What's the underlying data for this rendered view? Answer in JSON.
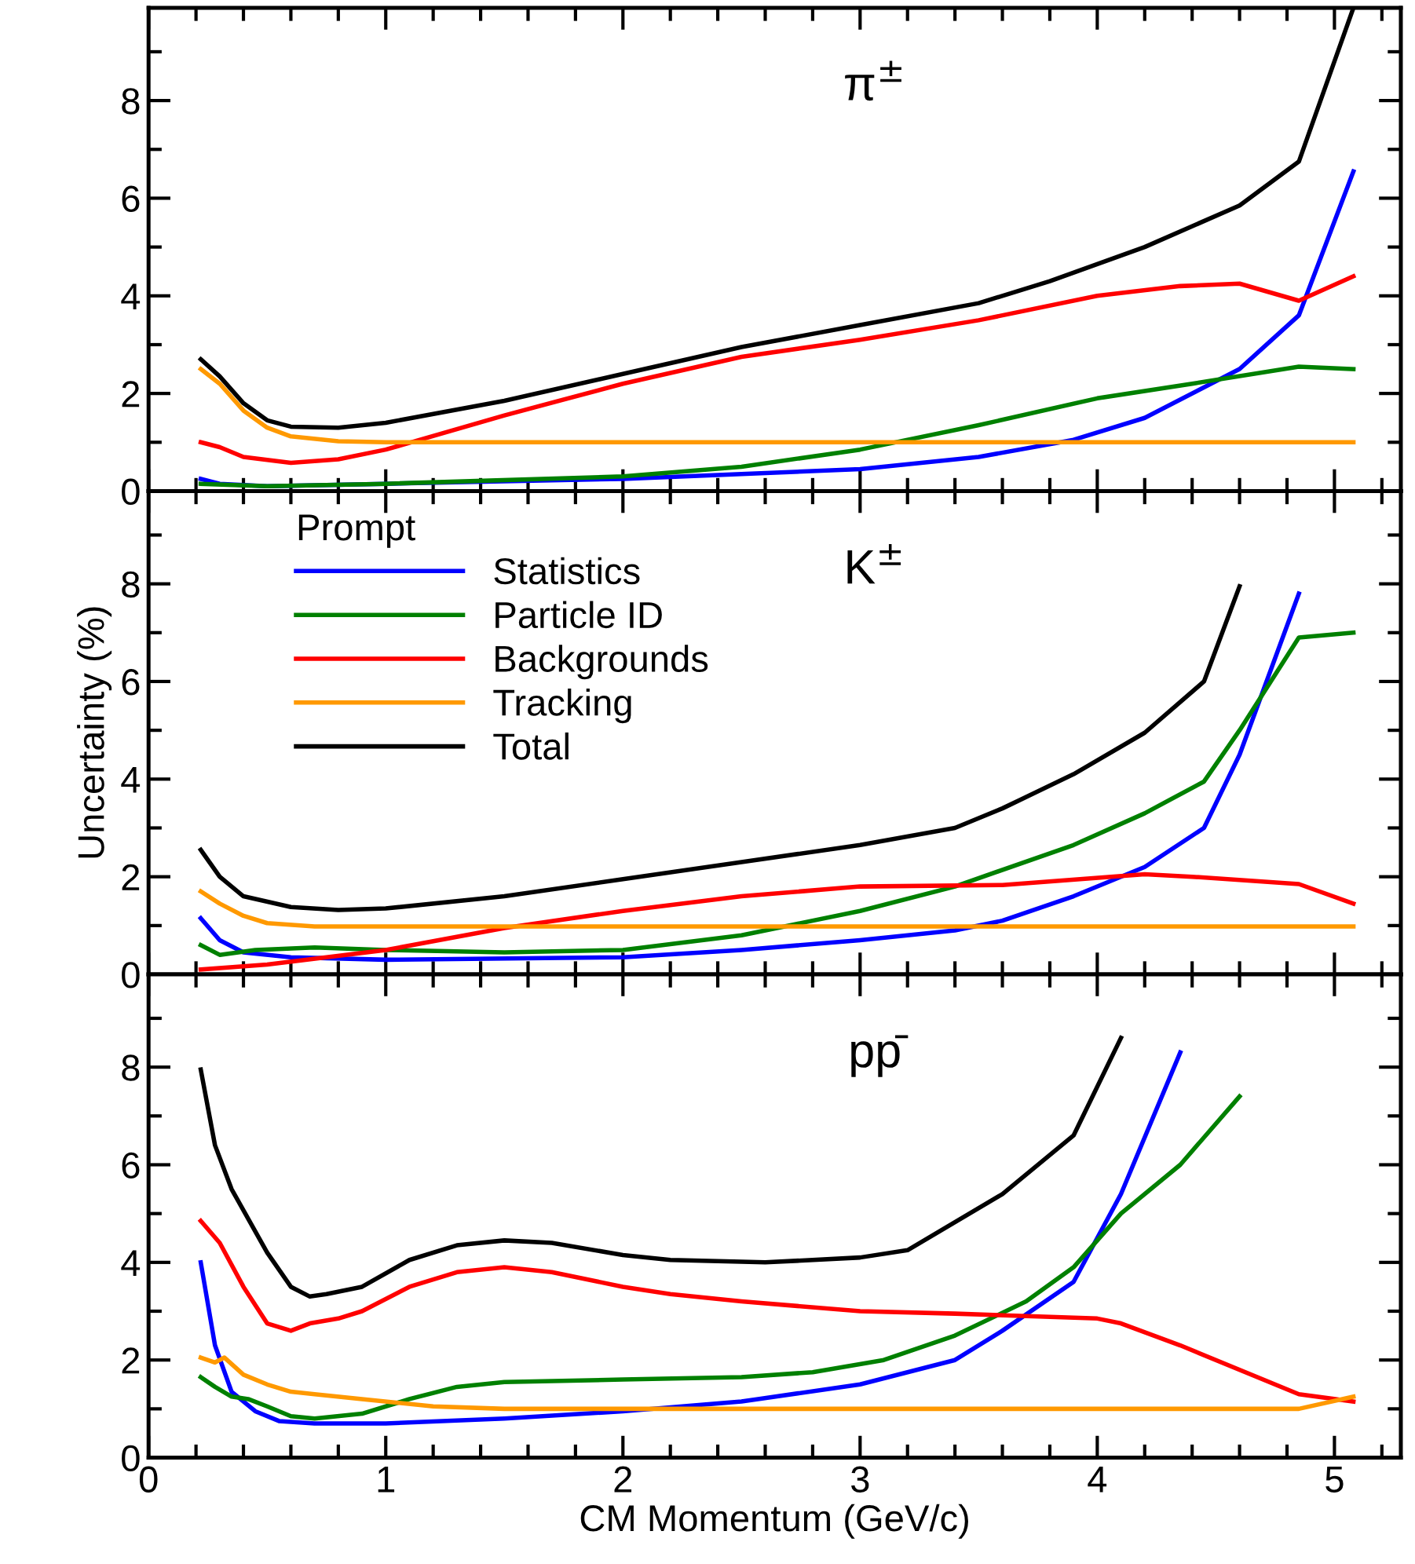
{
  "chart_data": [
    {
      "type": "line",
      "title": "π$^{±}$",
      "xlim": [
        0,
        5.28
      ],
      "ylim": [
        0,
        9.9
      ],
      "xticks": [
        0,
        1,
        2,
        3,
        4,
        5
      ],
      "yticks": [
        0,
        2,
        4,
        6,
        8
      ],
      "tick_labels": "y",
      "grid": false,
      "legend": false,
      "series": [
        {
          "color": "#0000ff",
          "x": [
            0.22,
            0.3,
            0.5,
            1.0,
            2.0,
            2.5,
            3.0,
            3.5,
            3.9,
            4.2,
            4.6,
            4.85,
            5.08
          ],
          "values": [
            0.25,
            0.15,
            0.1,
            0.15,
            0.25,
            0.35,
            0.45,
            0.7,
            1.05,
            1.5,
            2.5,
            3.6,
            6.55
          ]
        },
        {
          "color": "#008000",
          "x": [
            0.22,
            0.5,
            1.0,
            2.0,
            2.5,
            3.0,
            3.5,
            4.0,
            4.4,
            4.85,
            5.08
          ],
          "values": [
            0.15,
            0.1,
            0.15,
            0.3,
            0.5,
            0.85,
            1.35,
            1.9,
            2.2,
            2.55,
            2.5
          ]
        },
        {
          "color": "#ff0000",
          "x": [
            0.22,
            0.3,
            0.4,
            0.6,
            0.8,
            1.0,
            1.5,
            2.0,
            2.5,
            3.0,
            3.5,
            4.0,
            4.35,
            4.6,
            4.85,
            5.08
          ],
          "values": [
            1.0,
            0.9,
            0.7,
            0.58,
            0.65,
            0.85,
            1.55,
            2.2,
            2.75,
            3.1,
            3.5,
            4.0,
            4.2,
            4.25,
            3.9,
            4.4
          ]
        },
        {
          "color": "#ff9900",
          "x": [
            0.22,
            0.3,
            0.4,
            0.5,
            0.6,
            0.8,
            1.0,
            5.08
          ],
          "values": [
            2.5,
            2.2,
            1.65,
            1.3,
            1.12,
            1.02,
            1.0,
            1.0
          ]
        },
        {
          "color": "#000000",
          "x": [
            0.22,
            0.3,
            0.4,
            0.5,
            0.6,
            0.8,
            1.0,
            1.5,
            2.0,
            2.5,
            3.0,
            3.5,
            3.8,
            4.2,
            4.6,
            4.85,
            5.08
          ],
          "values": [
            2.7,
            2.35,
            1.8,
            1.45,
            1.32,
            1.3,
            1.4,
            1.85,
            2.4,
            2.95,
            3.4,
            3.85,
            4.3,
            5.0,
            5.85,
            6.75,
            9.9
          ]
        }
      ]
    },
    {
      "type": "line",
      "title": "K$^{±}$",
      "ylabel": "Uncertainty (%)",
      "legend_title": "Prompt",
      "xlim": [
        0,
        5.28
      ],
      "ylim": [
        0,
        9.9
      ],
      "xticks": [
        0,
        1,
        2,
        3,
        4,
        5
      ],
      "yticks": [
        0,
        2,
        4,
        6,
        8
      ],
      "tick_labels": "y",
      "grid": false,
      "legend": "top left",
      "series": [
        {
          "name": "Statistics",
          "color": "#0000ff",
          "x": [
            0.22,
            0.3,
            0.4,
            0.6,
            1.0,
            2.0,
            2.5,
            3.0,
            3.4,
            3.6,
            3.9,
            4.2,
            4.45,
            4.6,
            4.85
          ],
          "values": [
            1.15,
            0.7,
            0.45,
            0.35,
            0.3,
            0.35,
            0.5,
            0.7,
            0.9,
            1.1,
            1.6,
            2.2,
            3.0,
            4.5,
            7.8
          ]
        },
        {
          "name": "Particle ID",
          "color": "#008000",
          "x": [
            0.22,
            0.3,
            0.45,
            0.7,
            1.0,
            1.5,
            2.0,
            2.5,
            3.0,
            3.4,
            3.9,
            4.2,
            4.45,
            4.6,
            4.85,
            5.08
          ],
          "values": [
            0.6,
            0.4,
            0.5,
            0.55,
            0.5,
            0.45,
            0.5,
            0.8,
            1.3,
            1.8,
            2.65,
            3.3,
            3.95,
            5.0,
            6.9,
            7.0
          ]
        },
        {
          "name": "Backgrounds",
          "color": "#ff0000",
          "x": [
            0.22,
            0.5,
            1.0,
            1.5,
            2.0,
            2.5,
            3.0,
            3.6,
            4.2,
            4.4,
            4.85,
            5.08
          ],
          "values": [
            0.1,
            0.2,
            0.5,
            0.95,
            1.3,
            1.6,
            1.8,
            1.83,
            2.05,
            2.0,
            1.85,
            1.45
          ]
        },
        {
          "name": "Tracking",
          "color": "#ff9900",
          "x": [
            0.22,
            0.3,
            0.4,
            0.5,
            0.7,
            5.08
          ],
          "values": [
            1.7,
            1.45,
            1.2,
            1.05,
            0.98,
            0.98
          ]
        },
        {
          "name": "Total",
          "color": "#000000",
          "x": [
            0.22,
            0.3,
            0.4,
            0.6,
            0.8,
            1.0,
            1.5,
            2.0,
            2.5,
            3.0,
            3.4,
            3.6,
            3.9,
            4.2,
            4.45,
            4.6
          ],
          "values": [
            2.55,
            2.0,
            1.6,
            1.38,
            1.32,
            1.35,
            1.6,
            1.95,
            2.3,
            2.65,
            3.0,
            3.4,
            4.1,
            4.95,
            6.0,
            7.95
          ]
        }
      ]
    },
    {
      "type": "line",
      "title": "pp̄",
      "xlabel": "CM Momentum (GeV/c)",
      "xlim": [
        0,
        5.28
      ],
      "ylim": [
        0,
        9.9
      ],
      "xticks": [
        0,
        1,
        2,
        3,
        4,
        5
      ],
      "yticks": [
        0,
        2,
        4,
        6,
        8
      ],
      "grid": false,
      "legend": false,
      "series": [
        {
          "color": "#0000ff",
          "x": [
            0.22,
            0.28,
            0.35,
            0.45,
            0.55,
            0.7,
            1.0,
            1.5,
            2.0,
            2.5,
            3.0,
            3.4,
            3.6,
            3.9,
            4.1,
            4.35
          ],
          "values": [
            4.0,
            2.3,
            1.35,
            0.95,
            0.75,
            0.7,
            0.7,
            0.8,
            0.95,
            1.15,
            1.5,
            2.0,
            2.6,
            3.6,
            5.4,
            8.3
          ]
        },
        {
          "color": "#008000",
          "x": [
            0.22,
            0.28,
            0.35,
            0.42,
            0.5,
            0.6,
            0.7,
            0.9,
            1.1,
            1.3,
            1.5,
            2.0,
            2.5,
            2.8,
            3.1,
            3.4,
            3.7,
            3.9,
            4.1,
            4.35,
            4.6
          ],
          "values": [
            1.65,
            1.45,
            1.25,
            1.2,
            1.05,
            0.85,
            0.8,
            0.9,
            1.2,
            1.45,
            1.55,
            1.6,
            1.65,
            1.75,
            2.0,
            2.5,
            3.2,
            3.9,
            5.0,
            6.0,
            7.4
          ]
        },
        {
          "color": "#ff0000",
          "x": [
            0.22,
            0.3,
            0.4,
            0.5,
            0.6,
            0.68,
            0.8,
            0.9,
            1.1,
            1.3,
            1.5,
            1.7,
            2.0,
            2.2,
            2.5,
            3.0,
            3.4,
            4.0,
            4.1,
            4.35,
            4.85,
            5.08
          ],
          "values": [
            4.85,
            4.4,
            3.5,
            2.75,
            2.6,
            2.75,
            2.85,
            3.0,
            3.5,
            3.8,
            3.9,
            3.8,
            3.5,
            3.35,
            3.2,
            3.0,
            2.95,
            2.85,
            2.75,
            2.3,
            1.3,
            1.15
          ]
        },
        {
          "color": "#ff9900",
          "x": [
            0.22,
            0.28,
            0.32,
            0.4,
            0.5,
            0.6,
            0.7,
            0.9,
            1.2,
            1.5,
            4.85,
            5.08
          ],
          "values": [
            2.05,
            1.95,
            2.05,
            1.7,
            1.5,
            1.35,
            1.3,
            1.2,
            1.05,
            1.0,
            1.0,
            1.25
          ]
        },
        {
          "color": "#000000",
          "x": [
            0.22,
            0.28,
            0.35,
            0.5,
            0.6,
            0.68,
            0.75,
            0.9,
            1.1,
            1.3,
            1.5,
            1.7,
            2.0,
            2.2,
            2.6,
            3.0,
            3.2,
            3.6,
            3.9,
            4.1
          ],
          "values": [
            7.95,
            6.4,
            5.5,
            4.2,
            3.5,
            3.3,
            3.35,
            3.5,
            4.05,
            4.35,
            4.45,
            4.4,
            4.15,
            4.05,
            4.0,
            4.1,
            4.25,
            5.4,
            6.6,
            8.6
          ]
        }
      ]
    }
  ]
}
